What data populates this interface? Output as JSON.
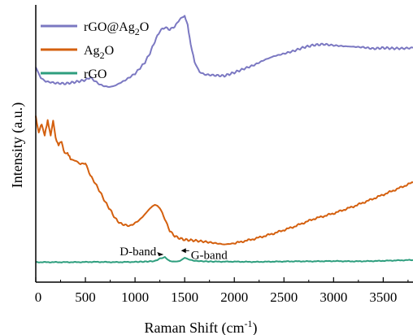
{
  "chart_data": {
    "type": "line",
    "xlabel": "Raman Shift (cm",
    "xlabel_sup": "-1",
    "xlabel_end": ")",
    "ylabel": "Intensity (a.u.)",
    "xlim": [
      0,
      3800
    ],
    "ylim": [
      0,
      1
    ],
    "x_ticks": [
      0,
      500,
      1000,
      1500,
      2000,
      2500,
      3000,
      3500
    ],
    "x_tick_labels": [
      "0",
      "500",
      "1000",
      "1500",
      "2000",
      "2500",
      "3000",
      "3500"
    ],
    "y_ticks_labeled": false,
    "grid": false,
    "legend_position": "top-left",
    "series": [
      {
        "name": "rGO@Ag2O",
        "name_base": "rGO@Ag",
        "name_sub": "2",
        "name_end": "O",
        "color": "#7b78c2",
        "x": [
          0,
          50,
          100,
          200,
          300,
          400,
          500,
          550,
          600,
          650,
          700,
          750,
          800,
          900,
          1000,
          1050,
          1100,
          1150,
          1200,
          1250,
          1300,
          1350,
          1400,
          1450,
          1500,
          1530,
          1560,
          1600,
          1650,
          1700,
          1800,
          1900,
          2000,
          2100,
          2200,
          2300,
          2400,
          2500,
          2600,
          2700,
          2800,
          2900,
          3000,
          3100,
          3200,
          3300,
          3400,
          3500,
          3600,
          3700,
          3800
        ],
        "y": [
          0.775,
          0.737,
          0.724,
          0.718,
          0.716,
          0.722,
          0.729,
          0.739,
          0.724,
          0.712,
          0.706,
          0.704,
          0.709,
          0.728,
          0.752,
          0.772,
          0.793,
          0.826,
          0.869,
          0.906,
          0.919,
          0.911,
          0.922,
          0.948,
          0.961,
          0.926,
          0.861,
          0.793,
          0.758,
          0.749,
          0.746,
          0.744,
          0.756,
          0.77,
          0.783,
          0.801,
          0.815,
          0.824,
          0.834,
          0.847,
          0.855,
          0.858,
          0.854,
          0.851,
          0.849,
          0.847,
          0.842,
          0.845,
          0.843,
          0.843,
          0.845
        ]
      },
      {
        "name": "Ag2O",
        "name_base": "Ag",
        "name_sub": "2",
        "name_end": "O",
        "color": "#d4600f",
        "x": [
          0,
          30,
          60,
          90,
          120,
          150,
          175,
          200,
          230,
          260,
          290,
          320,
          350,
          400,
          450,
          500,
          550,
          600,
          650,
          700,
          750,
          800,
          850,
          900,
          950,
          1000,
          1050,
          1100,
          1150,
          1200,
          1250,
          1300,
          1350,
          1400,
          1450,
          1500,
          1600,
          1700,
          1800,
          1900,
          2000,
          2200,
          2400,
          2600,
          2800,
          3000,
          3200,
          3400,
          3600,
          3800
        ],
        "y": [
          0.596,
          0.54,
          0.571,
          0.528,
          0.585,
          0.526,
          0.585,
          0.519,
          0.495,
          0.508,
          0.463,
          0.467,
          0.443,
          0.438,
          0.426,
          0.429,
          0.385,
          0.356,
          0.324,
          0.289,
          0.261,
          0.23,
          0.212,
          0.206,
          0.203,
          0.213,
          0.226,
          0.245,
          0.266,
          0.28,
          0.268,
          0.228,
          0.185,
          0.166,
          0.158,
          0.153,
          0.15,
          0.146,
          0.141,
          0.136,
          0.14,
          0.156,
          0.176,
          0.2,
          0.228,
          0.248,
          0.273,
          0.301,
          0.33,
          0.36
        ]
      },
      {
        "name": "rGO",
        "name_base": "rGO",
        "name_sub": "",
        "name_end": "",
        "color": "#2e9e7e",
        "x": [
          0,
          200,
          400,
          600,
          800,
          1000,
          1100,
          1200,
          1250,
          1300,
          1350,
          1400,
          1450,
          1500,
          1550,
          1600,
          1700,
          1800,
          2000,
          2200,
          2400,
          2600,
          2800,
          3000,
          3200,
          3400,
          3600,
          3800
        ],
        "y": [
          0.072,
          0.072,
          0.072,
          0.073,
          0.072,
          0.073,
          0.074,
          0.076,
          0.085,
          0.09,
          0.076,
          0.074,
          0.076,
          0.088,
          0.081,
          0.077,
          0.075,
          0.074,
          0.074,
          0.073,
          0.074,
          0.075,
          0.075,
          0.076,
          0.075,
          0.076,
          0.078,
          0.08
        ]
      }
    ],
    "annotations": [
      {
        "text": "D-band",
        "x": 1280,
        "y": 0.085
      },
      {
        "text": "G-band",
        "x": 1480,
        "y": 0.09
      }
    ]
  }
}
